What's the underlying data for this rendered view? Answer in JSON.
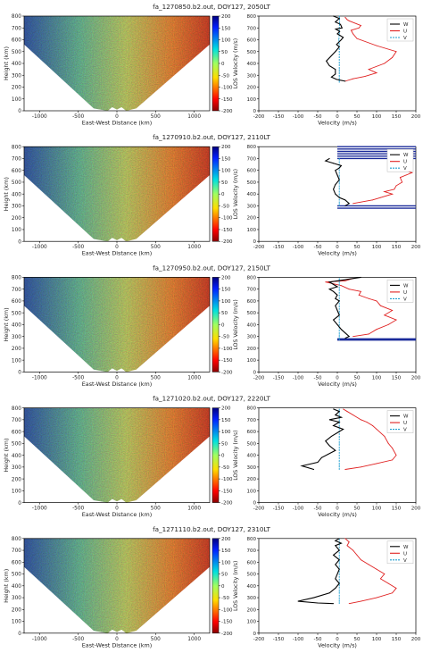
{
  "panel_common": {
    "left_xlabel": "East-West Distance (km)",
    "left_ylabel": "Height (km)",
    "colorbar_label": "LOS Velocity (m/s)",
    "right_xlabel": "Velocity (m/s)",
    "left_yticks": [
      "0",
      "100",
      "200",
      "300",
      "400",
      "500",
      "600",
      "700",
      "800"
    ],
    "colorbar_ticks": [
      "-200",
      "-150",
      "-100",
      "-50",
      "0",
      "50",
      "100",
      "150",
      "200"
    ],
    "right_xticks": [
      "-200",
      "-150",
      "-100",
      "-50",
      "0",
      "50",
      "100",
      "150",
      "200"
    ],
    "right_yticks": [
      "0",
      "100",
      "200",
      "300",
      "400",
      "500",
      "600",
      "700",
      "800"
    ],
    "legend": [
      "W",
      "U",
      "V"
    ],
    "colors": {
      "W": "#000000",
      "U": "#e02020",
      "V": "#1f9fd0",
      "band": "#1a2a9a"
    }
  },
  "chart_data": [
    {
      "type": "line",
      "title": "fa_1270850.b2.out, DOY127, 2050LT",
      "left_xticks": [
        "-1000",
        "-500",
        "0",
        "500",
        "1000"
      ],
      "xlim": [
        -200,
        200
      ],
      "ylim": [
        0,
        800
      ],
      "series": [
        {
          "name": "W",
          "x": [
            -10,
            5,
            -5,
            8,
            12,
            -4,
            6,
            0,
            15,
            10,
            -2,
            5,
            -5,
            -28,
            -20,
            -5,
            -5,
            -15,
            -2,
            20
          ],
          "y": [
            800,
            780,
            750,
            730,
            700,
            690,
            670,
            650,
            620,
            600,
            560,
            540,
            500,
            420,
            380,
            350,
            310,
            285,
            265,
            250
          ]
        },
        {
          "name": "U",
          "x": [
            20,
            25,
            30,
            60,
            55,
            35,
            40,
            50,
            100,
            150,
            140,
            120,
            80,
            100,
            70,
            40,
            20
          ],
          "y": [
            790,
            770,
            760,
            720,
            700,
            680,
            650,
            610,
            550,
            500,
            450,
            400,
            350,
            320,
            290,
            270,
            250
          ]
        },
        {
          "name": "V",
          "x": [
            5,
            6,
            5,
            5,
            4,
            5,
            5,
            5,
            5,
            5,
            5,
            5,
            5,
            5,
            5,
            5
          ],
          "y": [
            800,
            750,
            700,
            650,
            600,
            550,
            500,
            450,
            400,
            350,
            330,
            300,
            280,
            260,
            250,
            240
          ]
        }
      ]
    },
    {
      "type": "line",
      "title": "fa_1270910.b2.out, DOY127, 2110LT",
      "left_xticks": [
        "-1000",
        "-500",
        "0",
        "500",
        "1000"
      ],
      "xlim": [
        -200,
        200
      ],
      "ylim": [
        0,
        800
      ],
      "band_heights": [
        800,
        780,
        760,
        740,
        720,
        700,
        300,
        280
      ],
      "series": [
        {
          "name": "W",
          "x": [
            -20,
            -30,
            -10,
            10,
            5,
            -5,
            0,
            5,
            -5,
            -10,
            -5,
            5,
            20,
            30,
            20
          ],
          "y": [
            700,
            680,
            660,
            640,
            620,
            600,
            560,
            520,
            480,
            440,
            400,
            370,
            350,
            320,
            300
          ]
        },
        {
          "name": "U",
          "x": [
            140,
            160,
            150,
            190,
            175,
            160,
            165,
            150,
            145,
            120,
            140,
            110,
            90,
            40
          ],
          "y": [
            680,
            650,
            620,
            580,
            560,
            540,
            500,
            470,
            440,
            420,
            400,
            370,
            350,
            320
          ]
        },
        {
          "name": "V",
          "x": [
            5,
            5,
            5,
            5,
            5,
            5,
            5,
            5,
            5,
            5
          ],
          "y": [
            700,
            650,
            600,
            550,
            500,
            450,
            400,
            350,
            320,
            300
          ]
        }
      ]
    },
    {
      "type": "line",
      "title": "fa_1270950.b2.out, DOY127, 2150LT",
      "left_xticks": [
        "-1000",
        "-500",
        "0",
        "500",
        "1000"
      ],
      "xlim": [
        -200,
        200
      ],
      "ylim": [
        0,
        800
      ],
      "band_heights": [
        280,
        270
      ],
      "series": [
        {
          "name": "W",
          "x": [
            60,
            20,
            -20,
            -10,
            0,
            -20,
            -10,
            0,
            -5,
            5,
            -5,
            0,
            5,
            -10,
            0,
            10,
            20,
            30,
            20
          ],
          "y": [
            800,
            780,
            760,
            740,
            720,
            700,
            680,
            650,
            620,
            600,
            560,
            520,
            480,
            440,
            400,
            360,
            330,
            300,
            285
          ]
        },
        {
          "name": "U",
          "x": [
            40,
            20,
            -30,
            10,
            30,
            60,
            55,
            80,
            100,
            110,
            140,
            120,
            150,
            130,
            100,
            80,
            40
          ],
          "y": [
            790,
            770,
            760,
            730,
            700,
            680,
            650,
            620,
            600,
            560,
            520,
            480,
            440,
            400,
            360,
            320,
            300
          ]
        },
        {
          "name": "V",
          "x": [
            5,
            5,
            5,
            5,
            5,
            5,
            5,
            5,
            5,
            5,
            5,
            5,
            5,
            5,
            5,
            5
          ],
          "y": [
            790,
            750,
            700,
            650,
            600,
            550,
            500,
            450,
            400,
            350,
            320,
            300,
            290,
            280,
            275,
            270
          ]
        }
      ]
    },
    {
      "type": "line",
      "title": "fa_1271020.b2.out, DOY127, 2220LT",
      "left_xticks": [
        "-1000",
        "-500",
        "0",
        "500",
        "1000"
      ],
      "xlim": [
        -200,
        200
      ],
      "ylim": [
        0,
        800
      ],
      "series": [
        {
          "name": "W",
          "x": [
            -10,
            5,
            -5,
            10,
            -20,
            5,
            -10,
            15,
            5,
            -15,
            -30,
            -20,
            -5,
            -40,
            -50,
            -90,
            -60
          ],
          "y": [
            790,
            770,
            740,
            720,
            700,
            680,
            650,
            620,
            600,
            560,
            520,
            480,
            440,
            380,
            340,
            310,
            280
          ]
        },
        {
          "name": "U",
          "x": [
            15,
            25,
            40,
            60,
            75,
            90,
            100,
            120,
            130,
            140,
            150,
            140,
            100,
            60,
            20
          ],
          "y": [
            790,
            770,
            740,
            700,
            680,
            650,
            620,
            560,
            500,
            460,
            400,
            360,
            330,
            300,
            280
          ]
        },
        {
          "name": "V",
          "x": [
            5,
            5,
            5,
            5,
            5,
            5,
            5,
            5,
            5,
            5,
            5,
            5,
            5
          ],
          "y": [
            790,
            740,
            700,
            650,
            600,
            550,
            500,
            450,
            400,
            350,
            320,
            300,
            280
          ]
        }
      ]
    },
    {
      "type": "line",
      "title": "fa_1271110.b2.out, DOY127, 2310LT",
      "left_xticks": [
        "-1000",
        "-500",
        "0",
        "500",
        "1000"
      ],
      "xlim": [
        -200,
        200
      ],
      "ylim": [
        0,
        800
      ],
      "series": [
        {
          "name": "W",
          "x": [
            5,
            -5,
            10,
            -5,
            5,
            -10,
            5,
            -5,
            5,
            0,
            -5,
            5,
            -5,
            -20,
            -60,
            -100,
            -50,
            -10
          ],
          "y": [
            800,
            780,
            760,
            740,
            700,
            660,
            620,
            580,
            540,
            500,
            460,
            420,
            380,
            340,
            300,
            270,
            255,
            250
          ]
        },
        {
          "name": "U",
          "x": [
            20,
            30,
            25,
            40,
            50,
            60,
            80,
            100,
            120,
            110,
            130,
            150,
            140,
            100,
            60,
            30
          ],
          "y": [
            800,
            770,
            740,
            700,
            660,
            620,
            580,
            540,
            500,
            460,
            420,
            380,
            340,
            300,
            270,
            250
          ]
        },
        {
          "name": "V",
          "x": [
            5,
            5,
            5,
            5,
            5,
            5,
            5,
            5,
            5,
            5,
            5,
            5,
            5,
            5
          ],
          "y": [
            800,
            750,
            700,
            650,
            600,
            550,
            500,
            450,
            400,
            350,
            300,
            280,
            260,
            250
          ]
        }
      ]
    }
  ]
}
